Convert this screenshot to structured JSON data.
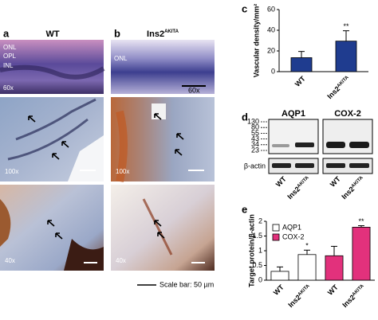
{
  "figure": {
    "panel_a": {
      "letter": "a",
      "title": "WT",
      "layer_labels": [
        "ONL",
        "OPL",
        "INL"
      ],
      "magnifications": [
        "60x",
        "100x",
        "40x"
      ]
    },
    "panel_b": {
      "letter": "b",
      "title": {
        "text": "Ins2",
        "sup": "AKITA"
      },
      "layer_labels": [
        "ONL"
      ],
      "magnifications": [
        "60x",
        "100x",
        "40x"
      ]
    },
    "scale_bar": "Scale bar: 50 µm",
    "panel_c": {
      "letter": "c"
    },
    "panel_d": {
      "letter": "d",
      "proteins": [
        "AQP1",
        "COX-2"
      ],
      "loading_control": "β-actin",
      "markers": [
        130,
        80,
        55,
        43,
        34,
        23
      ],
      "lanes": [
        {
          "text": "WT"
        },
        {
          "text": "Ins2",
          "sup": "AKITA"
        },
        {
          "text": "WT"
        },
        {
          "text": "Ins2",
          "sup": "AKITA"
        }
      ]
    },
    "panel_e": {
      "letter": "e"
    }
  },
  "chart_data": [
    {
      "type": "bar",
      "ylabel": "Vascular density/mm²",
      "categories": [
        {
          "text": "WT"
        },
        {
          "text": "Ins2",
          "sup": "AKITA"
        }
      ],
      "series": [
        {
          "color": "#1f3c8f",
          "values": [
            13.5,
            29.5
          ],
          "errors": [
            6,
            10
          ],
          "significance": [
            null,
            "**"
          ]
        }
      ],
      "ylim": [
        0,
        60
      ],
      "yticks": [
        0,
        20,
        40,
        60
      ]
    },
    {
      "type": "bar",
      "ylabel": "Target protein/β-actin",
      "categories": [
        {
          "text": "WT"
        },
        {
          "text": "Ins2",
          "sup": "AKITA"
        },
        {
          "text": "WT"
        },
        {
          "text": "Ins2",
          "sup": "AKITA"
        }
      ],
      "series": [
        {
          "name": "AQP1",
          "color": "#ffffff",
          "values": [
            0.3,
            0.87,
            null,
            null
          ],
          "errors": [
            0.15,
            0.15,
            null,
            null
          ],
          "significance": [
            null,
            "*",
            null,
            null
          ]
        },
        {
          "name": "COX-2",
          "color": "#e2317c",
          "values": [
            null,
            null,
            0.83,
            1.8
          ],
          "errors": [
            null,
            null,
            0.32,
            0.05
          ],
          "significance": [
            null,
            null,
            null,
            "**"
          ]
        }
      ],
      "ylim": [
        0,
        2
      ],
      "yticks": [
        0,
        0.5,
        1,
        1.5,
        2
      ],
      "legend": "upper-left"
    }
  ]
}
